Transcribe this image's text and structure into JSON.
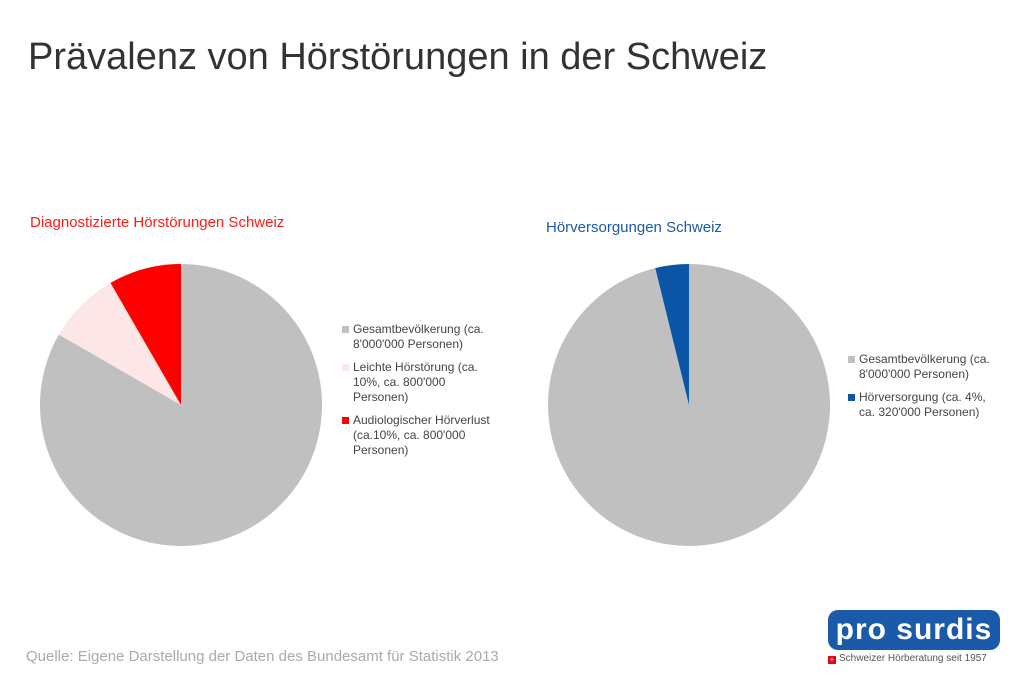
{
  "title": "Prävalenz von Hörstörungen in der Schweiz",
  "source": "Quelle: Eigene Darstellung der Daten des Bundesamt für Statistik 2013",
  "logo": {
    "text": "pro surdis",
    "tagline": "Schweizer Hörberatung seit 1957"
  },
  "chart_data": [
    {
      "type": "pie",
      "title": "Diagnostizierte Hörstörungen Schweiz",
      "title_color": "#ff1a1a",
      "legend": "right",
      "slices": [
        {
          "label": "Gesamtbevölkerung (ca. 8'000'000 Personen)",
          "value": 8000000,
          "color": "#c0c0c0"
        },
        {
          "label": "Leichte Hörstörung (ca. 10%, ca. 800'000 Personen)",
          "value": 800000,
          "color": "#fde6e6"
        },
        {
          "label": "Audiologischer Hörverlust (ca.10%, ca. 800'000 Personen)",
          "value": 800000,
          "color": "#ff0000"
        }
      ]
    },
    {
      "type": "pie",
      "title": "Hörversorgungen Schweiz",
      "title_color": "#1a5aa8",
      "legend": "right",
      "slices": [
        {
          "label": "Gesamtbevölkerung (ca. 8'000'000 Personen)",
          "value": 8000000,
          "color": "#c0c0c0"
        },
        {
          "label": "Hörversorgung (ca. 4%, ca. 320'000 Personen)",
          "value": 320000,
          "color": "#0a55a5"
        }
      ]
    }
  ]
}
